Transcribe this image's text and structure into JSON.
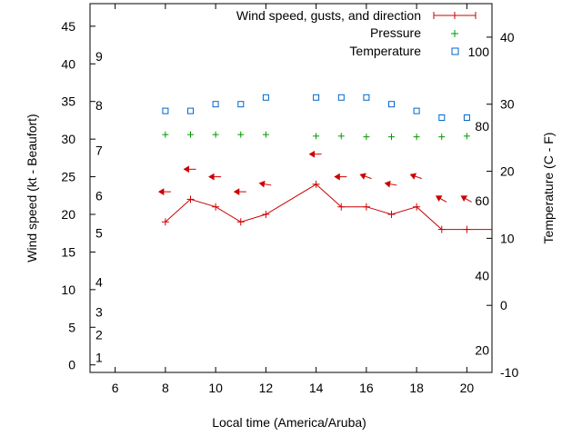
{
  "chart_data": {
    "type": "line",
    "x_axis": {
      "label": "Local time (America/Aruba)",
      "range": [
        5,
        21
      ],
      "ticks": [
        6,
        8,
        10,
        12,
        14,
        16,
        18,
        20
      ]
    },
    "y_left": {
      "label": "Wind speed (kt - Beaufort)",
      "range": [
        -1,
        48
      ],
      "ticks": [
        0,
        5,
        10,
        15,
        20,
        25,
        30,
        35,
        40,
        45
      ]
    },
    "beaufort_labels": [
      {
        "label": "1",
        "kt": 1
      },
      {
        "label": "2",
        "kt": 4
      },
      {
        "label": "3",
        "kt": 7
      },
      {
        "label": "4",
        "kt": 11
      },
      {
        "label": "5",
        "kt": 17.5
      },
      {
        "label": "6",
        "kt": 22.5
      },
      {
        "label": "7",
        "kt": 28.5
      },
      {
        "label": "8",
        "kt": 34.5
      },
      {
        "label": "9",
        "kt": 41
      }
    ],
    "y_right": {
      "label": "Temperature (C - F)",
      "range": [
        -10,
        45
      ],
      "ticks": [
        -10,
        0,
        10,
        20,
        30,
        40
      ]
    },
    "fahrenheit_labels": [
      {
        "label": "20",
        "c": -6.7
      },
      {
        "label": "40",
        "c": 4.4
      },
      {
        "label": "60",
        "c": 15.6
      },
      {
        "label": "80",
        "c": 26.7
      },
      {
        "label": "100",
        "c": 37.8
      }
    ],
    "legend": [
      {
        "key": "wind",
        "label": "Wind speed, gusts, and direction",
        "color": "#cc0000"
      },
      {
        "key": "pressure",
        "label": "Pressure",
        "color": "#009900"
      },
      {
        "key": "temperature",
        "label": "Temperature",
        "color": "#0066cc"
      }
    ],
    "series": [
      {
        "name": "Wind speed, gusts, and direction",
        "color": "#cc0000",
        "x": [
          8,
          9,
          10,
          11,
          12,
          14,
          15,
          16,
          17,
          18,
          19,
          20,
          21
        ],
        "values": [
          19,
          22,
          21,
          19,
          20,
          24,
          21,
          21,
          20,
          21,
          18,
          18,
          18
        ]
      },
      {
        "name": "Wind direction arrows",
        "color": "#cc0000",
        "x": [
          8,
          9,
          10,
          11,
          12,
          14,
          15,
          16,
          17,
          18,
          19,
          20
        ],
        "values": [
          23,
          26,
          25,
          23,
          24,
          28,
          25,
          25,
          24,
          25,
          22,
          22
        ],
        "direction_deg": [
          90,
          90,
          90,
          90,
          100,
          90,
          90,
          110,
          100,
          110,
          120,
          120
        ]
      },
      {
        "name": "Pressure",
        "color": "#009900",
        "x": [
          8,
          9,
          10,
          11,
          12,
          14,
          15,
          16,
          17,
          18,
          19,
          20
        ],
        "values": [
          30.6,
          30.6,
          30.6,
          30.6,
          30.6,
          30.4,
          30.4,
          30.3,
          30.3,
          30.3,
          30.3,
          30.4
        ]
      },
      {
        "name": "Temperature",
        "color": "#0066cc",
        "x": [
          8,
          9,
          10,
          11,
          12,
          14,
          15,
          16,
          17,
          18,
          19,
          20
        ],
        "values": [
          29,
          29,
          30,
          30,
          31,
          31,
          31,
          31,
          30,
          29,
          28,
          28
        ]
      }
    ]
  }
}
